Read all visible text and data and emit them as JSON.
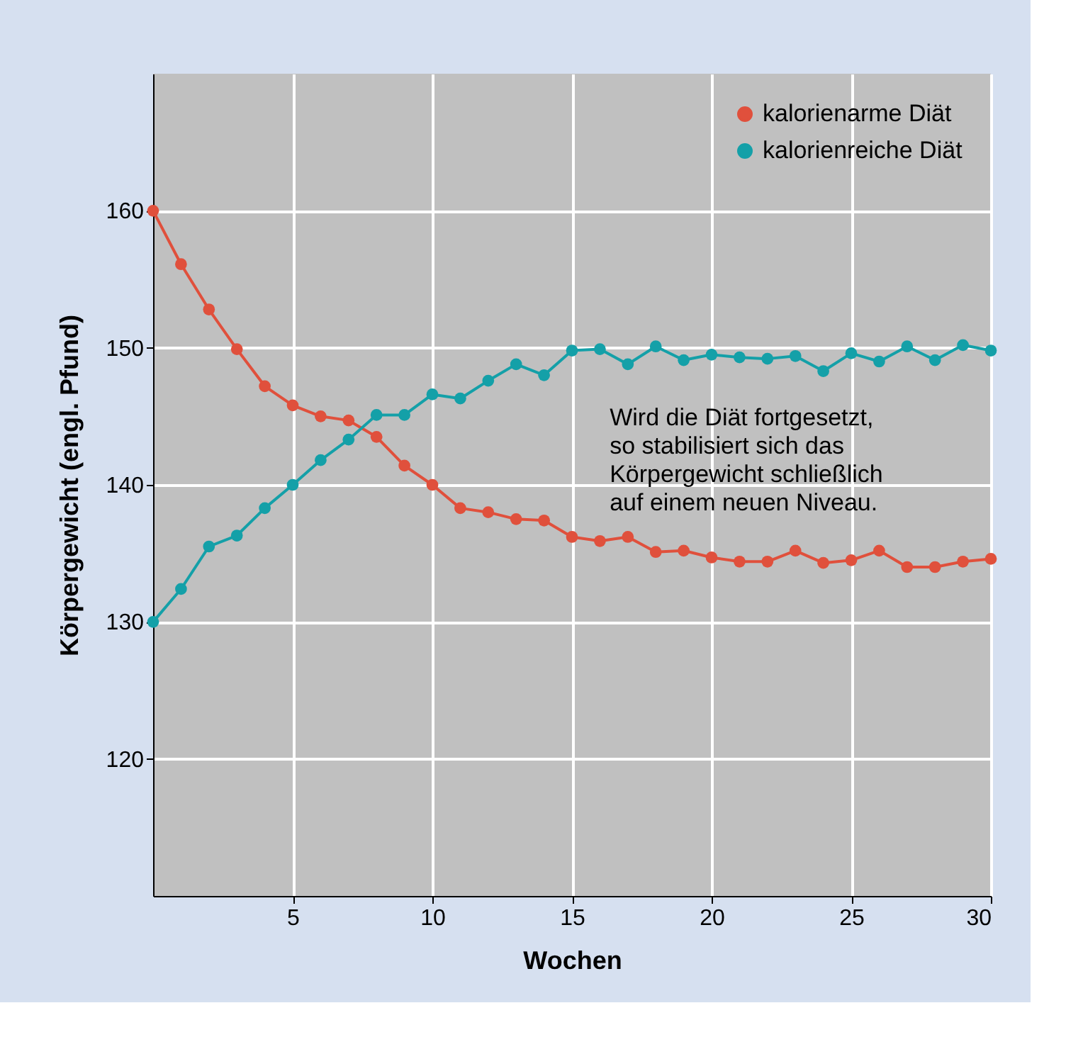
{
  "chart_data": {
    "type": "line",
    "xlabel": "Wochen",
    "ylabel": "Körpergewicht (engl. Pfund)",
    "x": [
      0,
      1,
      2,
      3,
      4,
      5,
      6,
      7,
      8,
      9,
      10,
      11,
      12,
      13,
      14,
      15,
      16,
      17,
      18,
      19,
      20,
      21,
      22,
      23,
      24,
      25,
      26,
      27,
      28,
      29,
      30
    ],
    "series": [
      {
        "name": "kalorienarme Diät",
        "color": "#e0503c",
        "values": [
          160,
          156.1,
          152.8,
          149.9,
          147.2,
          145.8,
          145.0,
          144.7,
          143.5,
          141.4,
          140.0,
          138.3,
          138.0,
          137.5,
          137.4,
          136.2,
          135.9,
          136.2,
          135.1,
          135.2,
          134.7,
          134.4,
          134.4,
          135.2,
          134.3,
          134.5,
          135.2,
          134.0,
          134.0,
          134.4,
          134.6
        ]
      },
      {
        "name": "kalorienreiche Diät",
        "color": "#14a0a8",
        "values": [
          130,
          132.4,
          135.5,
          136.3,
          138.3,
          140.0,
          141.8,
          143.3,
          145.1,
          145.1,
          146.6,
          146.3,
          147.6,
          148.8,
          148.0,
          149.8,
          149.9,
          148.8,
          150.1,
          149.1,
          149.5,
          149.3,
          149.2,
          149.4,
          148.3,
          149.6,
          149.0,
          150.1,
          149.1,
          150.2,
          149.8
        ]
      }
    ],
    "xlim": [
      0,
      30
    ],
    "xticks": [
      5,
      10,
      15,
      20,
      25,
      30
    ],
    "ylim": [
      110,
      170
    ],
    "yticks": [
      120,
      130,
      140,
      150,
      160
    ],
    "grid": true,
    "legend": "top right",
    "marker": "circle",
    "line_style": "solid",
    "annotations": [
      "Wird die Diät fortgesetzt,\nso stabilisiert sich das\nKörpergewicht schließlich\nauf einem neuen Niveau."
    ]
  }
}
